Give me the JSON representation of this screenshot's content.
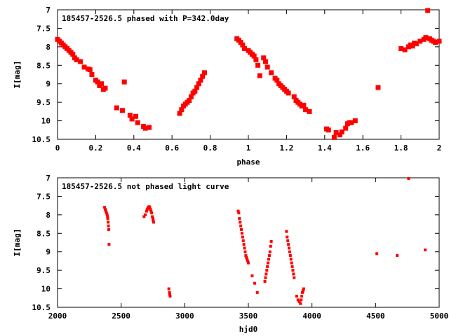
{
  "chart_data": [
    {
      "type": "scatter",
      "title": "185457-2526.5 phased with P=342.0day",
      "xlabel": "phase",
      "ylabel": "I[mag]",
      "xlim": [
        0,
        2
      ],
      "ylim": [
        10.5,
        7
      ],
      "y_inverted": true,
      "x_ticks": [
        "0",
        "0.2",
        "0.4",
        "0.6",
        "0.8",
        "1",
        "1.2",
        "1.4",
        "1.6",
        "1.8",
        "2"
      ],
      "y_ticks": [
        "7",
        "7.5",
        "8",
        "8.5",
        "9",
        "9.5",
        "10",
        "10.5"
      ],
      "grid": false,
      "marker_color": "#ff0000",
      "series": [
        {
          "x": [
            0.0,
            0.01,
            0.02,
            0.03,
            0.04,
            0.05,
            0.06,
            0.07,
            0.08,
            0.09,
            0.1,
            0.12,
            0.14,
            0.16,
            0.17,
            0.18,
            0.2,
            0.21,
            0.22,
            0.23,
            0.24,
            0.25,
            0.31,
            0.34,
            0.35,
            0.38,
            0.39,
            0.41,
            0.42,
            0.45,
            0.46,
            0.48,
            0.64,
            0.65,
            0.66,
            0.67,
            0.68,
            0.69,
            0.7,
            0.71,
            0.72,
            0.73,
            0.74,
            0.75,
            0.76,
            0.77,
            0.94,
            0.95,
            0.96,
            0.97,
            0.98,
            1.0,
            1.01,
            1.02,
            1.03,
            1.04,
            1.05,
            1.06,
            1.08,
            1.09,
            1.1,
            1.12,
            1.14,
            1.15,
            1.16,
            1.17,
            1.18,
            1.19,
            1.2,
            1.21,
            1.24,
            1.25,
            1.26,
            1.27,
            1.28,
            1.29,
            1.3,
            1.32,
            1.41,
            1.42,
            1.45,
            1.46,
            1.48,
            1.49,
            1.51,
            1.52,
            1.53,
            1.54,
            1.56,
            1.68,
            1.8,
            1.82,
            1.84,
            1.85,
            1.86,
            1.87,
            1.88,
            1.9,
            1.92,
            1.93,
            1.94,
            1.95,
            1.96,
            1.97,
            1.98,
            2.0
          ],
          "y": [
            7.8,
            7.85,
            7.9,
            7.95,
            8.0,
            8.05,
            8.1,
            8.15,
            8.2,
            8.3,
            8.35,
            8.4,
            8.55,
            8.6,
            8.62,
            8.75,
            8.9,
            8.95,
            9.05,
            9.0,
            9.15,
            9.12,
            9.65,
            9.72,
            8.95,
            9.85,
            9.95,
            9.88,
            10.05,
            10.15,
            10.2,
            10.18,
            9.8,
            9.7,
            9.6,
            9.55,
            9.5,
            9.45,
            9.35,
            9.25,
            9.2,
            9.1,
            9.0,
            8.9,
            8.8,
            8.7,
            7.78,
            7.82,
            7.88,
            7.95,
            8.05,
            8.1,
            8.15,
            8.2,
            8.25,
            8.35,
            8.5,
            8.78,
            8.3,
            8.4,
            8.55,
            8.7,
            8.85,
            8.9,
            9.0,
            9.05,
            9.1,
            9.15,
            9.2,
            9.25,
            9.35,
            9.45,
            9.5,
            9.55,
            9.6,
            9.58,
            9.7,
            9.75,
            10.22,
            10.25,
            10.45,
            10.32,
            10.38,
            10.3,
            10.2,
            10.08,
            10.05,
            10.05,
            10.0,
            9.1,
            8.05,
            8.08,
            8.0,
            7.95,
            7.98,
            7.9,
            7.92,
            7.85,
            7.8,
            7.75,
            7.02,
            7.78,
            7.82,
            7.85,
            7.88,
            7.85
          ]
        }
      ]
    },
    {
      "type": "scatter",
      "title": "185457-2526.5 not phased light curve",
      "xlabel": "hjd0",
      "ylabel": "I[mag]",
      "xlim": [
        2000,
        5000
      ],
      "ylim": [
        10.5,
        7
      ],
      "y_inverted": true,
      "x_ticks": [
        "2000",
        "2500",
        "3000",
        "3500",
        "4000",
        "4500",
        "5000"
      ],
      "y_ticks": [
        "7",
        "7.5",
        "8",
        "8.5",
        "9",
        "9.5",
        "10",
        "10.5"
      ],
      "grid": false,
      "marker_color": "#ff0000",
      "series": [
        {
          "x": [
            2370,
            2375,
            2380,
            2385,
            2390,
            2393,
            2395,
            2398,
            2400,
            2403,
            2405,
            2680,
            2690,
            2700,
            2705,
            2710,
            2715,
            2720,
            2725,
            2730,
            2735,
            2740,
            2745,
            2750,
            2752,
            2755,
            2875,
            2880,
            2882,
            2885,
            3420,
            3425,
            3430,
            3435,
            3440,
            3445,
            3450,
            3455,
            3460,
            3465,
            3470,
            3475,
            3480,
            3485,
            3490,
            3495,
            3500,
            3530,
            3550,
            3570,
            3630,
            3635,
            3640,
            3645,
            3650,
            3655,
            3660,
            3665,
            3670,
            3675,
            3680,
            3800,
            3805,
            3810,
            3815,
            3820,
            3825,
            3830,
            3835,
            3840,
            3845,
            3850,
            3855,
            3860,
            3880,
            3890,
            3900,
            3910,
            3915,
            3920,
            3925,
            3930,
            3935,
            4510,
            4670,
            4760,
            4890
          ],
          "y": [
            7.8,
            7.85,
            7.9,
            7.95,
            8.0,
            8.05,
            8.1,
            8.2,
            8.3,
            8.4,
            8.8,
            8.05,
            8.0,
            7.9,
            7.85,
            7.82,
            7.8,
            7.78,
            7.8,
            7.85,
            7.9,
            7.95,
            8.05,
            8.1,
            8.15,
            8.2,
            10.0,
            10.1,
            10.15,
            10.2,
            7.9,
            7.95,
            8.1,
            8.2,
            8.3,
            8.4,
            8.5,
            8.6,
            8.7,
            8.8,
            8.9,
            9.0,
            9.1,
            9.15,
            9.2,
            9.25,
            9.3,
            9.65,
            9.85,
            10.1,
            9.8,
            9.7,
            9.6,
            9.5,
            9.4,
            9.3,
            9.2,
            9.1,
            9.0,
            8.85,
            8.72,
            8.45,
            8.6,
            8.7,
            8.8,
            8.9,
            9.0,
            9.1,
            9.2,
            9.3,
            9.4,
            9.5,
            9.6,
            9.7,
            10.2,
            10.3,
            10.35,
            10.4,
            10.3,
            10.2,
            10.1,
            10.05,
            10.0,
            9.05,
            9.1,
            7.02,
            8.95
          ]
        }
      ]
    }
  ]
}
